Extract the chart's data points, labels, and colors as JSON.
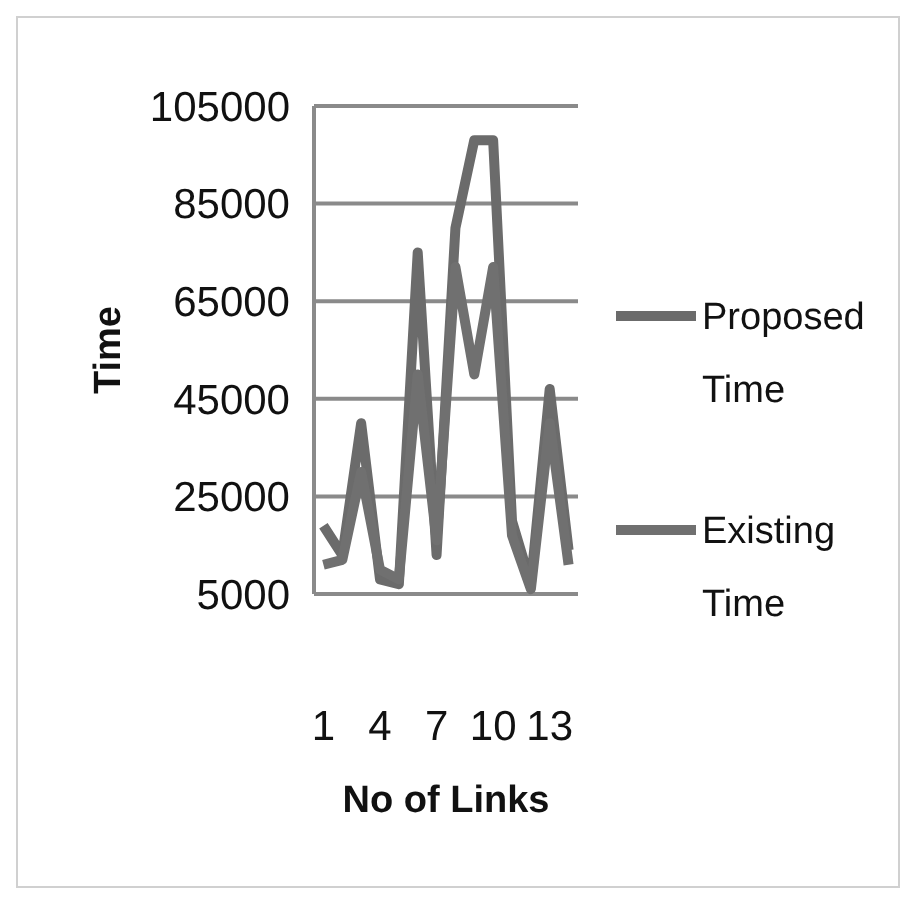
{
  "chart_data": {
    "type": "line",
    "xlabel": "No of Links",
    "ylabel": "Time",
    "categories": [
      "1",
      null,
      null,
      "4",
      null,
      null,
      "7",
      null,
      null,
      "10",
      null,
      null,
      "13",
      null
    ],
    "series": [
      {
        "name": "Proposed Time",
        "color": "#6b6b6b",
        "values": [
          19000,
          13000,
          40000,
          8000,
          7000,
          75000,
          13000,
          80000,
          98000,
          98000,
          20000,
          7000,
          47000,
          14000
        ]
      },
      {
        "name": "Existing Time",
        "color": "#707070",
        "values": [
          11000,
          12000,
          30000,
          10000,
          8000,
          50000,
          16000,
          72000,
          50000,
          72000,
          17000,
          6000,
          40000,
          11000
        ]
      }
    ],
    "ylim": [
      5000,
      105000
    ],
    "yticks": [
      5000,
      25000,
      45000,
      65000,
      85000,
      105000
    ],
    "grid": "y",
    "legend": "right",
    "marker": "none",
    "line_style": "solid"
  }
}
